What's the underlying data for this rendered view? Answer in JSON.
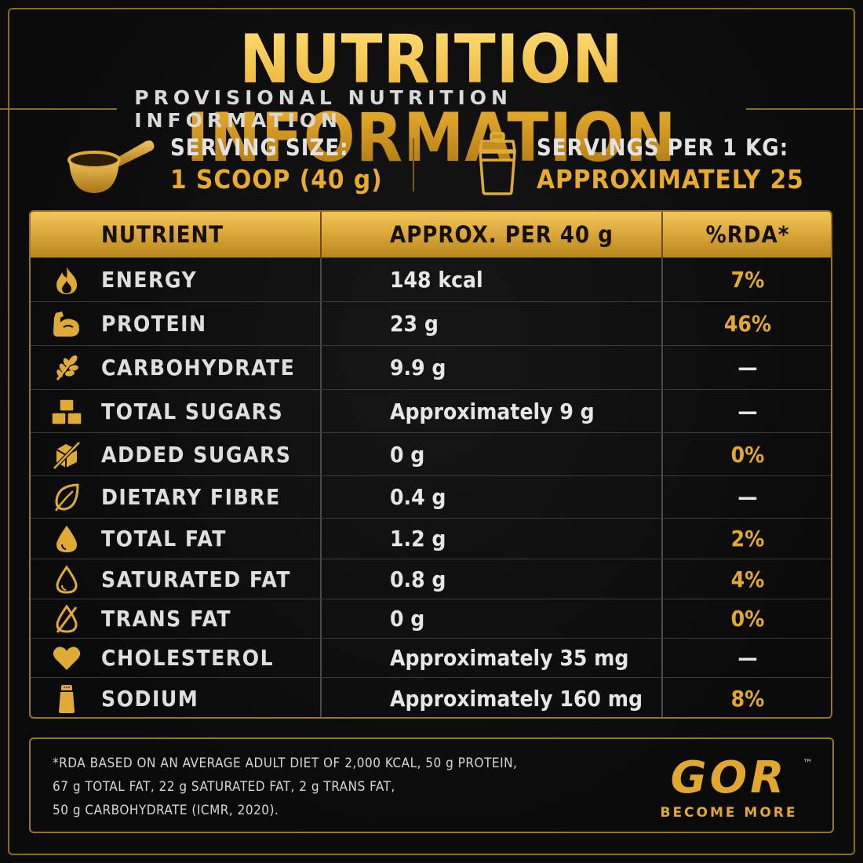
{
  "title": "NUTRITION INFORMATION",
  "subtitle": "PROVISIONAL NUTRITION INFORMATION",
  "serving_size": {
    "label": "SERVING SIZE:",
    "value": "1 SCOOP (40 g)",
    "icon": "scoop-icon"
  },
  "servings_per": {
    "label": "SERVINGS PER 1 KG:",
    "value": "APPROXIMATELY 25",
    "icon": "shaker-icon"
  },
  "table": {
    "headers": [
      "NUTRIENT",
      "APPROX. PER 40 g",
      "%RDA*"
    ],
    "rows": [
      {
        "icon": "flame-icon",
        "name": "ENERGY",
        "value": "148 kcal",
        "rda": "7%"
      },
      {
        "icon": "muscle-icon",
        "name": "PROTEIN",
        "value": "23 g",
        "rda": "46%"
      },
      {
        "icon": "wheat-icon",
        "name": "CARBOHYDRATE",
        "value": "9.9 g",
        "rda": "—"
      },
      {
        "icon": "sugar-cubes-icon",
        "name": "TOTAL SUGARS",
        "value": "Approximately 9 g",
        "rda": "—"
      },
      {
        "icon": "no-sugar-icon",
        "name": "ADDED SUGARS",
        "value": "0 g",
        "rda": "0%"
      },
      {
        "icon": "leaf-icon",
        "name": "DIETARY FIBRE",
        "value": "0.4 g",
        "rda": "—"
      },
      {
        "icon": "drop-icon",
        "name": "TOTAL FAT",
        "value": "1.2 g",
        "rda": "2%"
      },
      {
        "icon": "drop-outline-icon",
        "name": "SATURATED FAT",
        "value": "0.8 g",
        "rda": "4%"
      },
      {
        "icon": "drop-crossed-icon",
        "name": "TRANS FAT",
        "value": "0 g",
        "rda": "0%"
      },
      {
        "icon": "heart-icon",
        "name": "CHOLESTEROL",
        "value": "Approximately 35 mg",
        "rda": "—"
      },
      {
        "icon": "salt-shaker-icon",
        "name": "SODIUM",
        "value": "Approximately 160 mg",
        "rda": "8%"
      }
    ]
  },
  "footnote": {
    "line1": "*RDA BASED ON AN AVERAGE ADULT DIET OF 2,000 KCAL, 50 g PROTEIN,",
    "line2": "67 g TOTAL FAT, 22 g SATURATED FAT, 2 g TRANS FAT,",
    "line3": "50 g CARBOHYDRATE (ICMR, 2020)."
  },
  "brand": {
    "name": "GOR",
    "trademark": "™",
    "tagline": "BECOME MORE"
  },
  "colors": {
    "gold": "#e3a92f",
    "background": "#0b0b0b",
    "border": "#9a7522"
  }
}
